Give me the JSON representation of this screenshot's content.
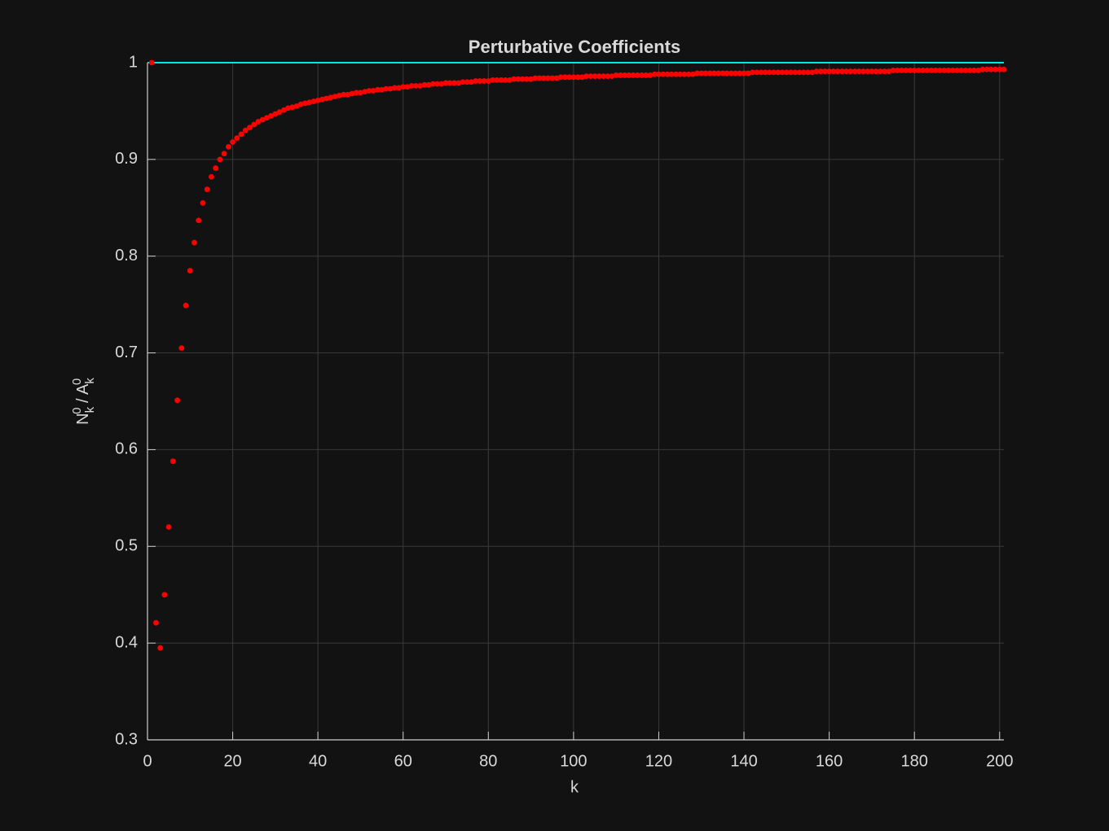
{
  "chart_data": {
    "type": "scatter",
    "title": "Perturbative Coefficients",
    "xlabel": "k",
    "ylabel_parts": [
      {
        "text": "N",
        "pos": "base"
      },
      {
        "text": "k",
        "pos": "sub"
      },
      {
        "text": "0",
        "pos": "sup"
      },
      {
        "text": " / ",
        "pos": "base"
      },
      {
        "text": "A",
        "pos": "base"
      },
      {
        "text": "k",
        "pos": "sub"
      },
      {
        "text": "0",
        "pos": "sup"
      }
    ],
    "xlim": [
      0,
      201
    ],
    "ylim": [
      0.3,
      1
    ],
    "xticks": [
      0,
      20,
      40,
      60,
      80,
      100,
      120,
      140,
      160,
      180,
      200
    ],
    "yticks": [
      0.3,
      0.4,
      0.5,
      0.6,
      0.7,
      0.8,
      0.9,
      1
    ],
    "grid": true,
    "series": [
      {
        "type": "scatter",
        "color": "#ff0000",
        "x": [
          1,
          2,
          3,
          4,
          5,
          6,
          7,
          8,
          9,
          10,
          11,
          12,
          13,
          14,
          15,
          16,
          17,
          18,
          19,
          20,
          21,
          22,
          23,
          24,
          25,
          26,
          27,
          28,
          29,
          30,
          31,
          32,
          33,
          34,
          35,
          36,
          37,
          38,
          39,
          40,
          41,
          42,
          43,
          44,
          45,
          46,
          47,
          48,
          49,
          50,
          51,
          52,
          53,
          54,
          55,
          56,
          57,
          58,
          59,
          60,
          61,
          62,
          63,
          64,
          65,
          66,
          67,
          68,
          69,
          70,
          71,
          72,
          73,
          74,
          75,
          76,
          77,
          78,
          79,
          80,
          81,
          82,
          83,
          84,
          85,
          86,
          87,
          88,
          89,
          90,
          91,
          92,
          93,
          94,
          95,
          96,
          97,
          98,
          99,
          100,
          101,
          102,
          103,
          104,
          105,
          106,
          107,
          108,
          109,
          110,
          111,
          112,
          113,
          114,
          115,
          116,
          117,
          118,
          119,
          120,
          121,
          122,
          123,
          124,
          125,
          126,
          127,
          128,
          129,
          130,
          131,
          132,
          133,
          134,
          135,
          136,
          137,
          138,
          139,
          140,
          141,
          142,
          143,
          144,
          145,
          146,
          147,
          148,
          149,
          150,
          151,
          152,
          153,
          154,
          155,
          156,
          157,
          158,
          159,
          160,
          161,
          162,
          163,
          164,
          165,
          166,
          167,
          168,
          169,
          170,
          171,
          172,
          173,
          174,
          175,
          176,
          177,
          178,
          179,
          180,
          181,
          182,
          183,
          184,
          185,
          186,
          187,
          188,
          189,
          190,
          191,
          192,
          193,
          194,
          195,
          196,
          197,
          198,
          199,
          200,
          201
        ],
        "values": [
          1.0,
          0.421,
          0.395,
          0.45,
          0.52,
          0.588,
          0.651,
          0.705,
          0.749,
          0.785,
          0.814,
          0.837,
          0.855,
          0.869,
          0.882,
          0.891,
          0.9,
          0.906,
          0.913,
          0.918,
          0.922,
          0.926,
          0.93,
          0.933,
          0.936,
          0.939,
          0.941,
          0.943,
          0.945,
          0.947,
          0.949,
          0.951,
          0.953,
          0.954,
          0.955,
          0.957,
          0.958,
          0.959,
          0.96,
          0.961,
          0.962,
          0.963,
          0.964,
          0.965,
          0.966,
          0.967,
          0.967,
          0.968,
          0.969,
          0.969,
          0.97,
          0.971,
          0.971,
          0.972,
          0.972,
          0.973,
          0.973,
          0.974,
          0.974,
          0.975,
          0.975,
          0.976,
          0.976,
          0.976,
          0.977,
          0.977,
          0.978,
          0.978,
          0.978,
          0.979,
          0.979,
          0.979,
          0.979,
          0.98,
          0.98,
          0.98,
          0.981,
          0.981,
          0.981,
          0.981,
          0.982,
          0.982,
          0.982,
          0.982,
          0.982,
          0.983,
          0.983,
          0.983,
          0.983,
          0.983,
          0.984,
          0.984,
          0.984,
          0.984,
          0.984,
          0.984,
          0.985,
          0.985,
          0.985,
          0.985,
          0.985,
          0.985,
          0.986,
          0.986,
          0.986,
          0.986,
          0.986,
          0.986,
          0.986,
          0.987,
          0.987,
          0.987,
          0.987,
          0.987,
          0.987,
          0.987,
          0.987,
          0.987,
          0.988,
          0.988,
          0.988,
          0.988,
          0.988,
          0.988,
          0.988,
          0.988,
          0.988,
          0.988,
          0.989,
          0.989,
          0.989,
          0.989,
          0.989,
          0.989,
          0.989,
          0.989,
          0.989,
          0.989,
          0.989,
          0.989,
          0.989,
          0.99,
          0.99,
          0.99,
          0.99,
          0.99,
          0.99,
          0.99,
          0.99,
          0.99,
          0.99,
          0.99,
          0.99,
          0.99,
          0.99,
          0.99,
          0.991,
          0.991,
          0.991,
          0.991,
          0.991,
          0.991,
          0.991,
          0.991,
          0.991,
          0.991,
          0.991,
          0.991,
          0.991,
          0.991,
          0.991,
          0.991,
          0.991,
          0.991,
          0.992,
          0.992,
          0.992,
          0.992,
          0.992,
          0.992,
          0.992,
          0.992,
          0.992,
          0.992,
          0.992,
          0.992,
          0.992,
          0.992,
          0.992,
          0.992,
          0.992,
          0.992,
          0.992,
          0.992,
          0.992,
          0.993,
          0.993,
          0.993,
          0.993,
          0.993,
          0.993
        ]
      },
      {
        "type": "line",
        "color": "#00e5ee",
        "x": [
          0,
          201
        ],
        "values": [
          1,
          1
        ]
      }
    ]
  }
}
